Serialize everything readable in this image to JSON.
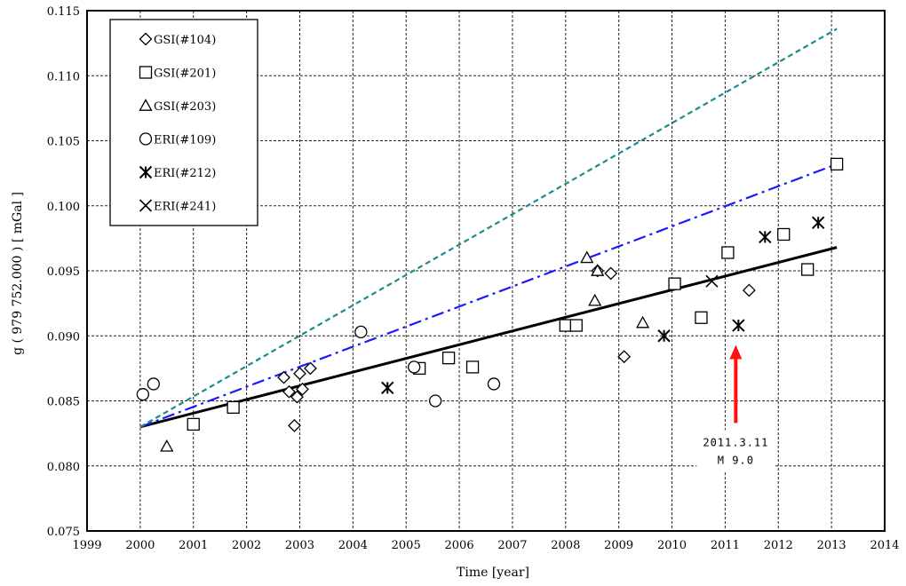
{
  "chart_data": {
    "type": "scatter",
    "title": "",
    "xlabel": "Time [year]",
    "ylabel": "g ( 979 752.000 ) [ mGal ]",
    "xlim": [
      1999,
      2014
    ],
    "ylim": [
      0.075,
      0.115
    ],
    "xticks": [
      "1999",
      "2000",
      "2001",
      "2002",
      "2003",
      "2004",
      "2005",
      "2006",
      "2007",
      "2008",
      "2009",
      "2010",
      "2011",
      "2012",
      "2013",
      "2014"
    ],
    "yticks": [
      "0.075",
      "0.080",
      "0.085",
      "0.090",
      "0.095",
      "0.100",
      "0.105",
      "0.110",
      "0.115"
    ],
    "grid": true,
    "legend_position": "top-left",
    "series": [
      {
        "name": "GSI(#104)",
        "marker": "diamond",
        "points": [
          {
            "x": 2002.7,
            "y": 0.0868
          },
          {
            "x": 2002.8,
            "y": 0.0857
          },
          {
            "x": 2002.9,
            "y": 0.0831
          },
          {
            "x": 2002.95,
            "y": 0.0853
          },
          {
            "x": 2003.0,
            "y": 0.0871
          },
          {
            "x": 2003.05,
            "y": 0.0859
          },
          {
            "x": 2003.2,
            "y": 0.0875
          },
          {
            "x": 2008.6,
            "y": 0.095
          },
          {
            "x": 2008.85,
            "y": 0.0948
          },
          {
            "x": 2009.1,
            "y": 0.0884
          },
          {
            "x": 2011.45,
            "y": 0.0935
          }
        ]
      },
      {
        "name": "GSI(#201)",
        "marker": "square",
        "points": [
          {
            "x": 2001.0,
            "y": 0.0832
          },
          {
            "x": 2001.75,
            "y": 0.0845
          },
          {
            "x": 2005.25,
            "y": 0.0875
          },
          {
            "x": 2005.8,
            "y": 0.0883
          },
          {
            "x": 2006.25,
            "y": 0.0876
          },
          {
            "x": 2008.0,
            "y": 0.0908
          },
          {
            "x": 2008.2,
            "y": 0.0908
          },
          {
            "x": 2010.05,
            "y": 0.094
          },
          {
            "x": 2010.55,
            "y": 0.0914
          },
          {
            "x": 2011.05,
            "y": 0.0964
          },
          {
            "x": 2012.1,
            "y": 0.0978
          },
          {
            "x": 2012.55,
            "y": 0.0951
          },
          {
            "x": 2013.1,
            "y": 0.1032
          }
        ]
      },
      {
        "name": "GSI(#203)",
        "marker": "triangle",
        "points": [
          {
            "x": 2000.5,
            "y": 0.0815
          },
          {
            "x": 2008.4,
            "y": 0.096
          },
          {
            "x": 2008.55,
            "y": 0.0927
          },
          {
            "x": 2008.6,
            "y": 0.095
          },
          {
            "x": 2009.45,
            "y": 0.091
          }
        ]
      },
      {
        "name": "ERI(#109)",
        "marker": "circle",
        "points": [
          {
            "x": 2000.05,
            "y": 0.0855
          },
          {
            "x": 2000.25,
            "y": 0.0863
          },
          {
            "x": 2004.15,
            "y": 0.0903
          },
          {
            "x": 2005.15,
            "y": 0.0876
          },
          {
            "x": 2005.55,
            "y": 0.085
          },
          {
            "x": 2006.65,
            "y": 0.0863
          }
        ]
      },
      {
        "name": "ERI(#212)",
        "marker": "asterisk",
        "points": [
          {
            "x": 2004.65,
            "y": 0.086
          },
          {
            "x": 2009.85,
            "y": 0.09
          },
          {
            "x": 2011.25,
            "y": 0.0908
          },
          {
            "x": 2011.75,
            "y": 0.0976
          },
          {
            "x": 2012.75,
            "y": 0.0987
          }
        ]
      },
      {
        "name": "ERI(#241)",
        "marker": "x",
        "points": [
          {
            "x": 2010.75,
            "y": 0.0942
          }
        ]
      }
    ],
    "lines": [
      {
        "style": "solid",
        "color": "#000000",
        "x": [
          2000.0,
          2013.1
        ],
        "y": [
          0.083,
          0.0968
        ]
      },
      {
        "style": "dash-dot",
        "color": "#1a1aff",
        "x": [
          2000.0,
          2013.1
        ],
        "y": [
          0.083,
          0.1032
        ]
      },
      {
        "style": "dashed",
        "color": "#1a8c8c",
        "x": [
          2000.0,
          2013.1
        ],
        "y": [
          0.083,
          0.1136
        ]
      }
    ],
    "annotation": {
      "line1": "2011.3.11",
      "line2": "M 9.0",
      "x": 2011.2,
      "y_tip": 0.0893,
      "y_tail": 0.0833,
      "arrow_color": "#ff1111"
    }
  }
}
